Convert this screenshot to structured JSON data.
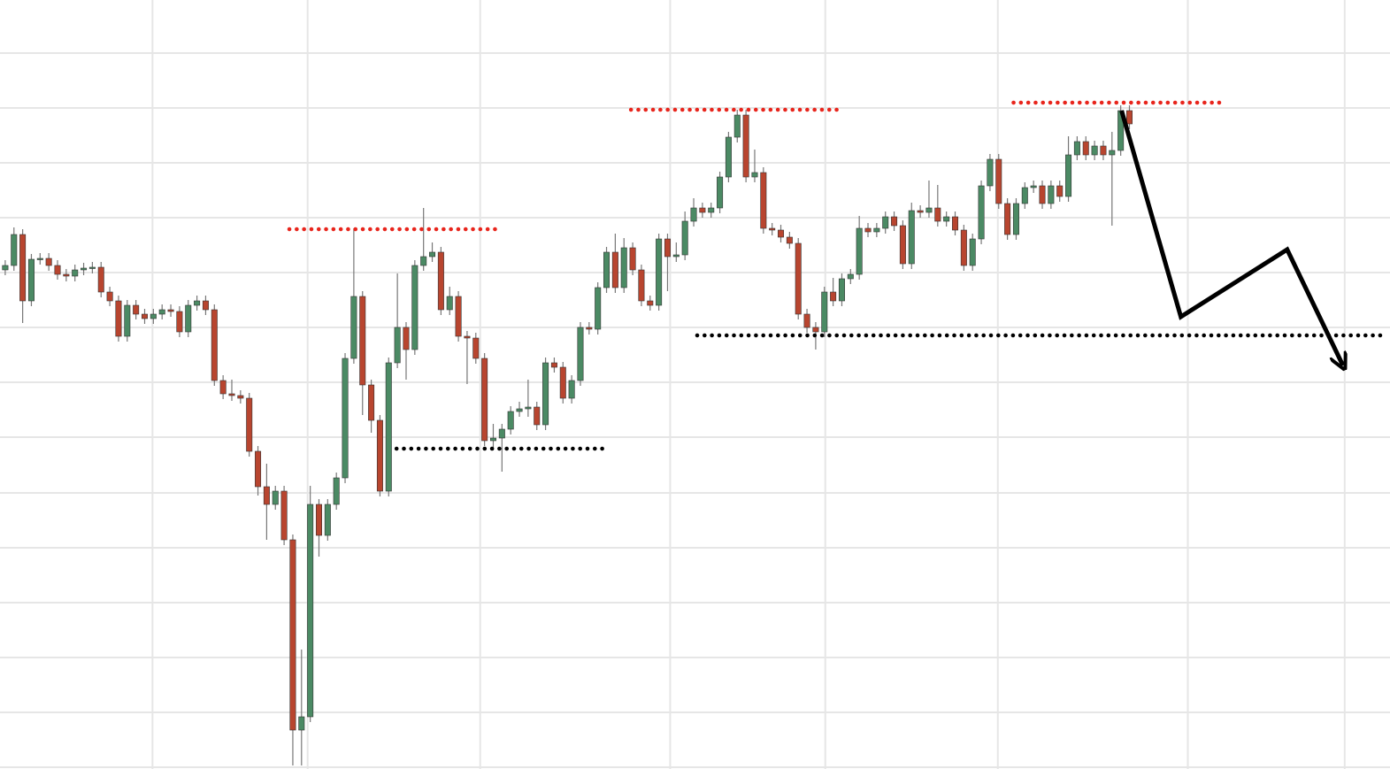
{
  "chart_data": {
    "type": "candlestick",
    "xlim": [
      -0.6,
      158.9
    ],
    "ylim": [
      0,
      869
    ],
    "xticks": [
      16.9,
      34.7,
      54.5,
      76.3,
      94.1,
      113.9,
      135.7,
      153.7
    ],
    "yticks": [
      2,
      64,
      126,
      188,
      250,
      312,
      375,
      437,
      499,
      561,
      623,
      685,
      747,
      809
    ],
    "grid": true,
    "up_color": "#4b8a64",
    "down_color": "#b8452f",
    "open": [
      564,
      569,
      604,
      529,
      576,
      577,
      569,
      559,
      557,
      564,
      566,
      567,
      539,
      529,
      489,
      524,
      514,
      509,
      514,
      519,
      517,
      494,
      524,
      529,
      519,
      439,
      424,
      422,
      419,
      359,
      319,
      299,
      314,
      259,
      44,
      59,
      299,
      264,
      299,
      329,
      464,
      534,
      434,
      394,
      314,
      459,
      499,
      474,
      569,
      579,
      584,
      519,
      534,
      489,
      487,
      464,
      371,
      374,
      384,
      404,
      407,
      409,
      389,
      459,
      454,
      419,
      439,
      499,
      497,
      544,
      584,
      544,
      589,
      564,
      529,
      524,
      599,
      579,
      581,
      619,
      634,
      629,
      634,
      669,
      714,
      739,
      669,
      674,
      611,
      609,
      601,
      594,
      514,
      499,
      494,
      539,
      529,
      554,
      559,
      611,
      607,
      611,
      624,
      614,
      571,
      631,
      629,
      634,
      619,
      624,
      609,
      569,
      599,
      659,
      689,
      639,
      604,
      639,
      657,
      659,
      639,
      659,
      647,
      694,
      709,
      694,
      704,
      694,
      699,
      744
    ],
    "high": [
      575,
      612,
      610,
      582,
      583,
      583,
      575,
      565,
      570,
      572,
      573,
      573,
      545,
      535,
      530,
      530,
      520,
      520,
      525,
      525,
      523,
      530,
      535,
      535,
      525,
      445,
      440,
      428,
      425,
      365,
      345,
      320,
      320,
      265,
      135,
      320,
      305,
      305,
      335,
      470,
      611,
      540,
      440,
      400,
      465,
      560,
      505,
      575,
      634,
      595,
      590,
      545,
      540,
      495,
      493,
      470,
      390,
      390,
      410,
      415,
      440,
      415,
      465,
      465,
      460,
      445,
      505,
      505,
      550,
      590,
      605,
      600,
      595,
      570,
      535,
      605,
      605,
      595,
      630,
      645,
      640,
      640,
      675,
      720,
      745,
      745,
      700,
      680,
      617,
      615,
      607,
      600,
      520,
      505,
      545,
      555,
      560,
      565,
      625,
      617,
      617,
      630,
      630,
      620,
      640,
      637,
      665,
      660,
      630,
      630,
      615,
      605,
      665,
      695,
      695,
      645,
      645,
      663,
      665,
      665,
      665,
      665,
      715,
      715,
      715,
      710,
      710,
      720,
      750,
      750
    ],
    "low": [
      558,
      563,
      504,
      523,
      570,
      563,
      553,
      551,
      551,
      558,
      560,
      533,
      523,
      483,
      483,
      508,
      503,
      503,
      508,
      511,
      488,
      488,
      518,
      513,
      433,
      418,
      416,
      413,
      353,
      309,
      259,
      293,
      253,
      4,
      4,
      53,
      240,
      258,
      293,
      323,
      458,
      400,
      380,
      308,
      308,
      453,
      440,
      468,
      563,
      573,
      513,
      513,
      483,
      435,
      458,
      365,
      360,
      336,
      378,
      398,
      398,
      383,
      383,
      448,
      413,
      413,
      433,
      491,
      491,
      538,
      538,
      538,
      558,
      523,
      518,
      518,
      540,
      573,
      575,
      613,
      623,
      623,
      628,
      663,
      708,
      663,
      663,
      605,
      603,
      595,
      588,
      508,
      493,
      474,
      488,
      523,
      523,
      548,
      553,
      601,
      601,
      605,
      608,
      565,
      565,
      623,
      623,
      613,
      613,
      603,
      563,
      563,
      593,
      653,
      633,
      598,
      598,
      633,
      651,
      633,
      633,
      641,
      641,
      688,
      688,
      688,
      688,
      614,
      693,
      723
    ],
    "close": [
      569,
      604,
      529,
      576,
      577,
      569,
      559,
      557,
      564,
      566,
      567,
      539,
      529,
      489,
      524,
      514,
      509,
      514,
      519,
      517,
      494,
      524,
      529,
      519,
      439,
      424,
      422,
      419,
      359,
      319,
      299,
      314,
      259,
      44,
      59,
      299,
      264,
      299,
      329,
      464,
      534,
      434,
      394,
      314,
      459,
      499,
      474,
      569,
      579,
      584,
      519,
      534,
      489,
      487,
      464,
      371,
      374,
      384,
      404,
      407,
      409,
      389,
      459,
      454,
      419,
      439,
      499,
      497,
      544,
      584,
      544,
      589,
      564,
      529,
      524,
      599,
      579,
      581,
      619,
      634,
      629,
      634,
      669,
      714,
      739,
      669,
      674,
      611,
      609,
      601,
      594,
      514,
      499,
      494,
      539,
      529,
      554,
      559,
      611,
      607,
      611,
      624,
      614,
      571,
      631,
      629,
      634,
      619,
      624,
      609,
      569,
      599,
      659,
      689,
      639,
      604,
      639,
      657,
      659,
      639,
      659,
      647,
      694,
      709,
      694,
      704,
      694,
      699,
      744,
      729
    ],
    "levels": [
      {
        "value": 610,
        "x": [
          32.6,
          57.0
        ],
        "color": "#e8251c"
      },
      {
        "value": 745,
        "x": [
          71.8,
          96.1
        ],
        "color": "#e8251c"
      },
      {
        "value": 753,
        "x": [
          115.7,
          140.1
        ],
        "color": "#e8251c"
      },
      {
        "value": 362,
        "x": [
          44.9,
          69.2
        ],
        "color": "#000000"
      },
      {
        "value": 490,
        "x": [
          79.4,
          158.4
        ],
        "color": "#000000"
      }
    ],
    "arrow": {
      "x": [
        128.1,
        134.9,
        147.1,
        153.5
      ],
      "y": [
        744,
        511,
        587,
        456
      ],
      "color": "#000000"
    }
  }
}
